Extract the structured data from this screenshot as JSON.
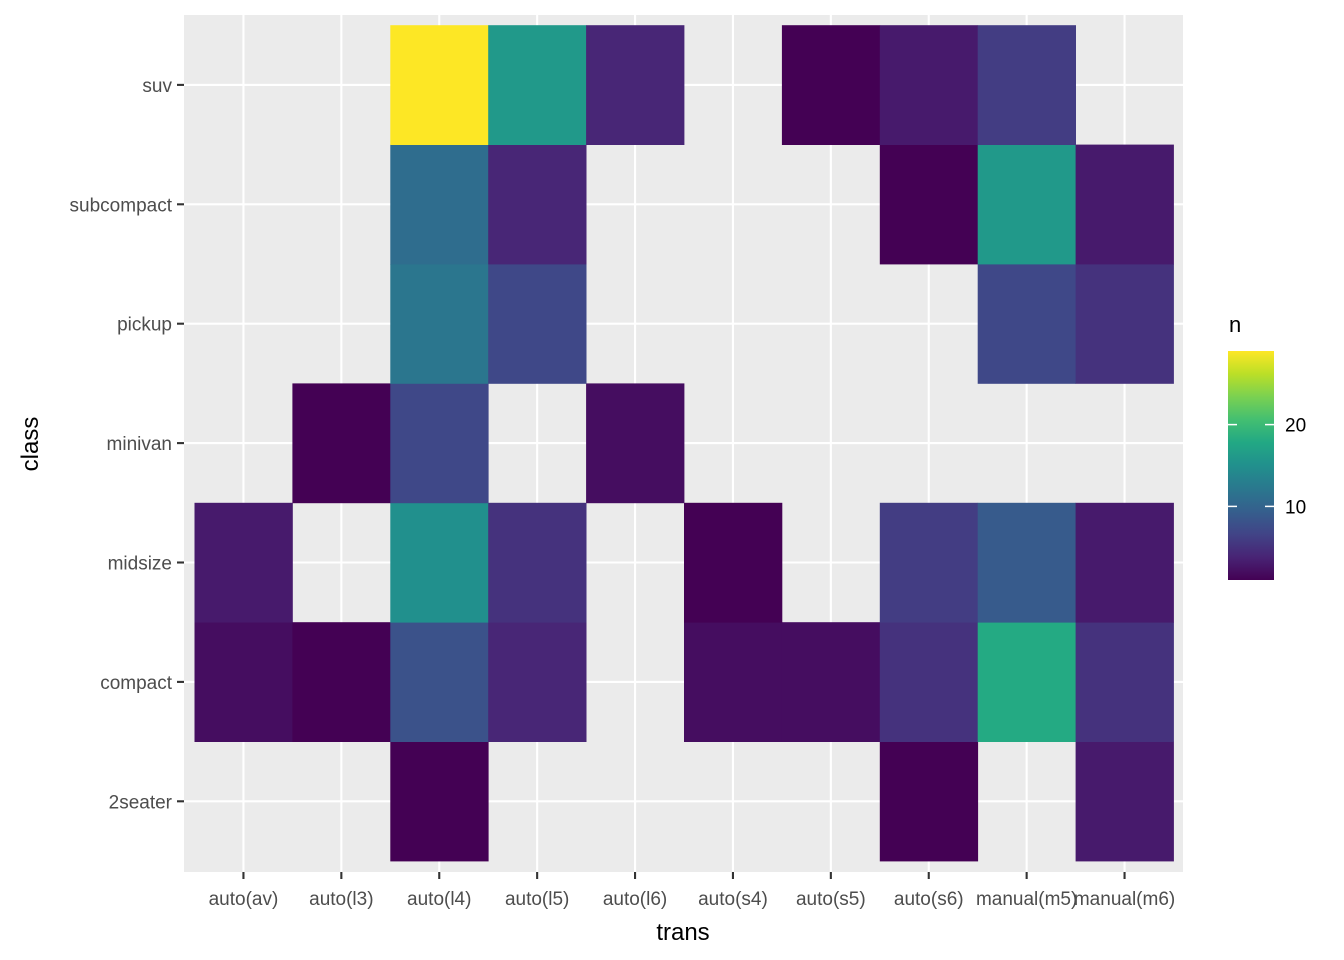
{
  "chart_data": {
    "type": "heatmap",
    "xlabel": "trans",
    "ylabel": "class",
    "x_categories": [
      "auto(av)",
      "auto(l3)",
      "auto(l4)",
      "auto(l5)",
      "auto(l6)",
      "auto(s4)",
      "auto(s5)",
      "auto(s6)",
      "manual(m5)",
      "manual(m6)"
    ],
    "y_categories": [
      "2seater",
      "compact",
      "midsize",
      "minivan",
      "pickup",
      "subcompact",
      "suv"
    ],
    "cells": [
      {
        "x": "auto(l4)",
        "y": "2seater",
        "n": 1
      },
      {
        "x": "auto(s6)",
        "y": "2seater",
        "n": 1
      },
      {
        "x": "manual(m6)",
        "y": "2seater",
        "n": 3
      },
      {
        "x": "auto(av)",
        "y": "compact",
        "n": 2
      },
      {
        "x": "auto(l3)",
        "y": "compact",
        "n": 1
      },
      {
        "x": "auto(l4)",
        "y": "compact",
        "n": 8
      },
      {
        "x": "auto(l5)",
        "y": "compact",
        "n": 4
      },
      {
        "x": "auto(s4)",
        "y": "compact",
        "n": 2
      },
      {
        "x": "auto(s5)",
        "y": "compact",
        "n": 2
      },
      {
        "x": "auto(s6)",
        "y": "compact",
        "n": 5
      },
      {
        "x": "manual(m5)",
        "y": "compact",
        "n": 18
      },
      {
        "x": "manual(m6)",
        "y": "compact",
        "n": 5
      },
      {
        "x": "auto(av)",
        "y": "midsize",
        "n": 3
      },
      {
        "x": "auto(l4)",
        "y": "midsize",
        "n": 15
      },
      {
        "x": "auto(l5)",
        "y": "midsize",
        "n": 5
      },
      {
        "x": "auto(s4)",
        "y": "midsize",
        "n": 1
      },
      {
        "x": "auto(s6)",
        "y": "midsize",
        "n": 6
      },
      {
        "x": "manual(m5)",
        "y": "midsize",
        "n": 9
      },
      {
        "x": "manual(m6)",
        "y": "midsize",
        "n": 3
      },
      {
        "x": "auto(l3)",
        "y": "minivan",
        "n": 1
      },
      {
        "x": "auto(l4)",
        "y": "minivan",
        "n": 7
      },
      {
        "x": "auto(l6)",
        "y": "minivan",
        "n": 2
      },
      {
        "x": "auto(l4)",
        "y": "pickup",
        "n": 12
      },
      {
        "x": "auto(l5)",
        "y": "pickup",
        "n": 7
      },
      {
        "x": "manual(m5)",
        "y": "pickup",
        "n": 7
      },
      {
        "x": "manual(m6)",
        "y": "pickup",
        "n": 5
      },
      {
        "x": "auto(l4)",
        "y": "subcompact",
        "n": 11
      },
      {
        "x": "auto(l5)",
        "y": "subcompact",
        "n": 4
      },
      {
        "x": "auto(s6)",
        "y": "subcompact",
        "n": 1
      },
      {
        "x": "manual(m5)",
        "y": "subcompact",
        "n": 16
      },
      {
        "x": "manual(m6)",
        "y": "subcompact",
        "n": 3
      },
      {
        "x": "auto(l4)",
        "y": "suv",
        "n": 29
      },
      {
        "x": "auto(l5)",
        "y": "suv",
        "n": 16
      },
      {
        "x": "auto(l6)",
        "y": "suv",
        "n": 4
      },
      {
        "x": "auto(s5)",
        "y": "suv",
        "n": 1
      },
      {
        "x": "auto(s6)",
        "y": "suv",
        "n": 3
      },
      {
        "x": "manual(m5)",
        "y": "suv",
        "n": 6
      }
    ],
    "legend": {
      "title": "n",
      "min": 1,
      "max": 29,
      "ticks": [
        10,
        20
      ],
      "placement": "right"
    },
    "colorscale": "viridis",
    "panel_background": "#EBEBEB",
    "grid": true
  }
}
